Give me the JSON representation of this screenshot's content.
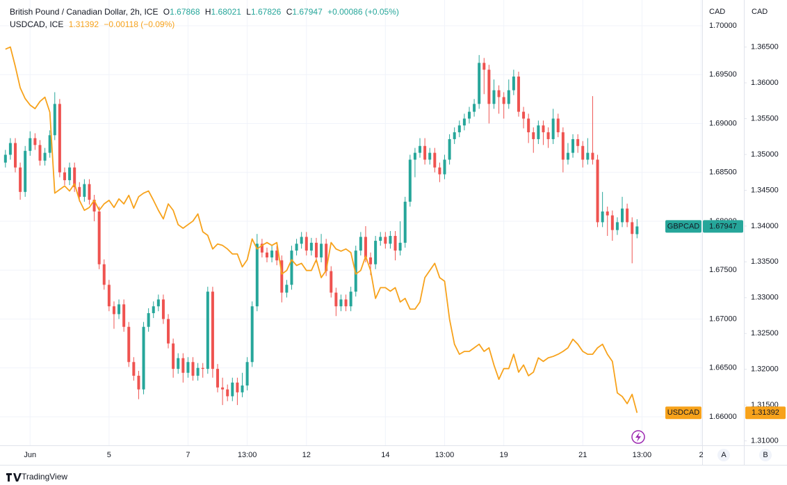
{
  "chart_data": {
    "type": "candlestick",
    "y_unit": "CAD",
    "y2_unit": "CAD",
    "brand": "TradingView",
    "scale_buttons": [
      "A",
      "B"
    ],
    "xlim": [
      -1.1,
      141.2
    ],
    "xticks": [
      {
        "value": 5,
        "label": "Jun"
      },
      {
        "value": 21,
        "label": "5"
      },
      {
        "value": 37,
        "label": "7"
      },
      {
        "value": 49,
        "label": "13:00"
      },
      {
        "value": 61,
        "label": "12"
      },
      {
        "value": 77,
        "label": "14"
      },
      {
        "value": 89,
        "label": "13:00"
      },
      {
        "value": 101,
        "label": "19"
      },
      {
        "value": 117,
        "label": "21"
      },
      {
        "value": 129,
        "label": "13:00"
      },
      {
        "value": 141,
        "label": "2"
      }
    ],
    "ylim": [
      1.65708,
      1.70263
    ],
    "yticks": [
      {
        "value": 1.66,
        "label": "1.66000"
      },
      {
        "value": 1.665,
        "label": "1.66500"
      },
      {
        "value": 1.67,
        "label": "1.67000"
      },
      {
        "value": 1.675,
        "label": "1.67500"
      },
      {
        "value": 1.68,
        "label": "1.68000"
      },
      {
        "value": 1.685,
        "label": "1.68500"
      },
      {
        "value": 1.69,
        "label": "1.69000"
      },
      {
        "value": 1.695,
        "label": "1.69500"
      },
      {
        "value": 1.7,
        "label": "1.70000"
      }
    ],
    "y2lim": [
      1.30938,
      1.37157
    ],
    "y2ticks": [
      {
        "value": 1.31,
        "label": "1.31000"
      },
      {
        "value": 1.315,
        "label": "1.31500"
      },
      {
        "value": 1.32,
        "label": "1.32000"
      },
      {
        "value": 1.325,
        "label": "1.32500"
      },
      {
        "value": 1.33,
        "label": "1.33000"
      },
      {
        "value": 1.335,
        "label": "1.33500"
      },
      {
        "value": 1.34,
        "label": "1.34000"
      },
      {
        "value": 1.345,
        "label": "1.34500"
      },
      {
        "value": 1.35,
        "label": "1.35000"
      },
      {
        "value": 1.355,
        "label": "1.35500"
      },
      {
        "value": 1.36,
        "label": "1.36000"
      },
      {
        "value": 1.365,
        "label": "1.36500"
      }
    ],
    "grid": true,
    "series": [
      {
        "name": "GBPCAD",
        "legend": "British Pound / Canadian Dollar, 2h, ICE",
        "type": "candlestick",
        "up_color": "#26a69a",
        "down_color": "#ef5350",
        "ohlc_labels": [
          "O",
          "H",
          "L",
          "C"
        ],
        "change": "+0.00086 (+0.05%)",
        "candles": [
          [
            1.686,
            1.6873,
            1.6855,
            1.6868
          ],
          [
            1.6868,
            1.6885,
            1.6863,
            1.688
          ],
          [
            1.688,
            1.6885,
            1.685,
            1.6855
          ],
          [
            1.6855,
            1.686,
            1.6822,
            1.683
          ],
          [
            1.683,
            1.6877,
            1.6825,
            1.6872
          ],
          [
            1.6872,
            1.6892,
            1.6867,
            1.6885
          ],
          [
            1.6885,
            1.689,
            1.6873,
            1.6878
          ],
          [
            1.6878,
            1.6883,
            1.6857,
            1.6862
          ],
          [
            1.6862,
            1.6875,
            1.6857,
            1.687
          ],
          [
            1.687,
            1.6893,
            1.6865,
            1.6888
          ],
          [
            1.6888,
            1.6932,
            1.6883,
            1.692
          ],
          [
            1.692,
            1.6925,
            1.6845,
            1.685
          ],
          [
            1.685,
            1.6855,
            1.6837,
            1.6842
          ],
          [
            1.6842,
            1.686,
            1.6837,
            1.6855
          ],
          [
            1.6855,
            1.686,
            1.683,
            1.6835
          ],
          [
            1.6835,
            1.684,
            1.682,
            1.6825
          ],
          [
            1.6825,
            1.6843,
            1.682,
            1.6838
          ],
          [
            1.6838,
            1.6843,
            1.6817,
            1.6822
          ],
          [
            1.6822,
            1.6827,
            1.68,
            1.681
          ],
          [
            1.681,
            1.6815,
            1.6751,
            1.6756
          ],
          [
            1.6756,
            1.6761,
            1.673,
            1.6735
          ],
          [
            1.6735,
            1.674,
            1.6708,
            1.6713
          ],
          [
            1.6713,
            1.6718,
            1.669,
            1.6705
          ],
          [
            1.6705,
            1.672,
            1.67,
            1.6715
          ],
          [
            1.6715,
            1.672,
            1.6687,
            1.6692
          ],
          [
            1.6692,
            1.6697,
            1.6651,
            1.6656
          ],
          [
            1.6656,
            1.6661,
            1.6637,
            1.6642
          ],
          [
            1.6642,
            1.6647,
            1.6618,
            1.6628
          ],
          [
            1.6628,
            1.6697,
            1.6623,
            1.6692
          ],
          [
            1.6692,
            1.6711,
            1.6687,
            1.6706
          ],
          [
            1.6706,
            1.6718,
            1.6701,
            1.6713
          ],
          [
            1.6713,
            1.6725,
            1.6708,
            1.672
          ],
          [
            1.672,
            1.6725,
            1.6695,
            1.67
          ],
          [
            1.67,
            1.6705,
            1.667,
            1.6675
          ],
          [
            1.6675,
            1.668,
            1.664,
            1.6649
          ],
          [
            1.6649,
            1.6665,
            1.6644,
            1.666
          ],
          [
            1.666,
            1.6665,
            1.6635,
            1.6645
          ],
          [
            1.6645,
            1.6661,
            1.664,
            1.6656
          ],
          [
            1.6656,
            1.6661,
            1.6637,
            1.6642
          ],
          [
            1.6642,
            1.6655,
            1.6637,
            1.665
          ],
          [
            1.665,
            1.6655,
            1.664,
            1.6649
          ],
          [
            1.6649,
            1.6733,
            1.6644,
            1.6728
          ],
          [
            1.6728,
            1.6733,
            1.664,
            1.6649
          ],
          [
            1.6649,
            1.6654,
            1.6625,
            1.663
          ],
          [
            1.663,
            1.664,
            1.6612,
            1.6628
          ],
          [
            1.6628,
            1.6633,
            1.6616,
            1.6621
          ],
          [
            1.6621,
            1.664,
            1.6616,
            1.6635
          ],
          [
            1.6635,
            1.664,
            1.6612,
            1.6625
          ],
          [
            1.6625,
            1.6645,
            1.662,
            1.6632
          ],
          [
            1.6632,
            1.6661,
            1.6627,
            1.6656
          ],
          [
            1.6656,
            1.6718,
            1.6651,
            1.6713
          ],
          [
            1.6713,
            1.6787,
            1.6708,
            1.6777
          ],
          [
            1.6777,
            1.6782,
            1.6763,
            1.6768
          ],
          [
            1.6768,
            1.6773,
            1.6758,
            1.6763
          ],
          [
            1.6763,
            1.6775,
            1.6758,
            1.677
          ],
          [
            1.677,
            1.6775,
            1.6755,
            1.676
          ],
          [
            1.676,
            1.6765,
            1.6717,
            1.6727
          ],
          [
            1.6727,
            1.674,
            1.6722,
            1.6735
          ],
          [
            1.6735,
            1.6775,
            1.673,
            1.677
          ],
          [
            1.677,
            1.6782,
            1.6765,
            1.6777
          ],
          [
            1.6777,
            1.6789,
            1.6772,
            1.6784
          ],
          [
            1.6784,
            1.6789,
            1.6765,
            1.677
          ],
          [
            1.677,
            1.6783,
            1.6765,
            1.6778
          ],
          [
            1.6778,
            1.6783,
            1.6758,
            1.6763
          ],
          [
            1.6763,
            1.6787,
            1.6758,
            1.6777
          ],
          [
            1.6777,
            1.6782,
            1.6744,
            1.6749
          ],
          [
            1.6749,
            1.6754,
            1.6722,
            1.6727
          ],
          [
            1.6727,
            1.6732,
            1.6703,
            1.6713
          ],
          [
            1.6713,
            1.6725,
            1.6708,
            1.672
          ],
          [
            1.672,
            1.6725,
            1.6708,
            1.6713
          ],
          [
            1.6713,
            1.6733,
            1.6708,
            1.6728
          ],
          [
            1.6728,
            1.6775,
            1.6723,
            1.677
          ],
          [
            1.677,
            1.6789,
            1.6765,
            1.6784
          ],
          [
            1.6784,
            1.6795,
            1.6758,
            1.6763
          ],
          [
            1.6763,
            1.6768,
            1.6745,
            1.6756
          ],
          [
            1.6756,
            1.6785,
            1.6751,
            1.678
          ],
          [
            1.678,
            1.6789,
            1.6775,
            1.6784
          ],
          [
            1.6784,
            1.6789,
            1.6772,
            1.6777
          ],
          [
            1.6777,
            1.679,
            1.6772,
            1.6785
          ],
          [
            1.6785,
            1.679,
            1.676,
            1.677
          ],
          [
            1.677,
            1.68,
            1.6765,
            1.6778
          ],
          [
            1.6778,
            1.6825,
            1.6773,
            1.682
          ],
          [
            1.682,
            1.6868,
            1.6815,
            1.6863
          ],
          [
            1.6863,
            1.6875,
            1.6845,
            1.687
          ],
          [
            1.687,
            1.6885,
            1.6865,
            1.6877
          ],
          [
            1.6877,
            1.6885,
            1.6858,
            1.6863
          ],
          [
            1.6863,
            1.6875,
            1.6858,
            1.687
          ],
          [
            1.687,
            1.6875,
            1.685,
            1.6855
          ],
          [
            1.6855,
            1.686,
            1.684,
            1.6848
          ],
          [
            1.6848,
            1.6868,
            1.6843,
            1.6863
          ],
          [
            1.6863,
            1.6889,
            1.6858,
            1.6884
          ],
          [
            1.6884,
            1.6896,
            1.6879,
            1.6891
          ],
          [
            1.6891,
            1.6903,
            1.6886,
            1.6898
          ],
          [
            1.6898,
            1.691,
            1.6893,
            1.6905
          ],
          [
            1.6905,
            1.6917,
            1.69,
            1.6912
          ],
          [
            1.6912,
            1.6925,
            1.6907,
            1.692
          ],
          [
            1.692,
            1.697,
            1.6915,
            1.6962
          ],
          [
            1.6962,
            1.6967,
            1.693,
            1.6955
          ],
          [
            1.6955,
            1.696,
            1.69,
            1.692
          ],
          [
            1.692,
            1.6945,
            1.6915,
            1.6934
          ],
          [
            1.6934,
            1.6939,
            1.691,
            1.6927
          ],
          [
            1.6927,
            1.6932,
            1.6905,
            1.692
          ],
          [
            1.692,
            1.6945,
            1.6915,
            1.6934
          ],
          [
            1.6934,
            1.6955,
            1.6929,
            1.6948
          ],
          [
            1.6948,
            1.6953,
            1.6907,
            1.6912
          ],
          [
            1.6912,
            1.6917,
            1.6895,
            1.6905
          ],
          [
            1.6905,
            1.691,
            1.688,
            1.6891
          ],
          [
            1.6891,
            1.6896,
            1.687,
            1.6884
          ],
          [
            1.6884,
            1.6903,
            1.6879,
            1.6898
          ],
          [
            1.6898,
            1.6903,
            1.6878,
            1.6891
          ],
          [
            1.6891,
            1.6896,
            1.6875,
            1.6884
          ],
          [
            1.6884,
            1.6915,
            1.6879,
            1.6905
          ],
          [
            1.6905,
            1.691,
            1.6886,
            1.6891
          ],
          [
            1.6891,
            1.6896,
            1.685,
            1.6863
          ],
          [
            1.6863,
            1.688,
            1.6858,
            1.687
          ],
          [
            1.687,
            1.6889,
            1.6865,
            1.6884
          ],
          [
            1.6884,
            1.6889,
            1.687,
            1.6877
          ],
          [
            1.6877,
            1.6882,
            1.6855,
            1.6863
          ],
          [
            1.6863,
            1.6885,
            1.6858,
            1.687
          ],
          [
            1.687,
            1.6928,
            1.6858,
            1.6863
          ],
          [
            1.6863,
            1.6868,
            1.6794,
            1.6799
          ],
          [
            1.6799,
            1.683,
            1.6794,
            1.681
          ],
          [
            1.681,
            1.6815,
            1.6785,
            1.6806
          ],
          [
            1.6806,
            1.6811,
            1.678,
            1.6791
          ],
          [
            1.6791,
            1.6804,
            1.6786,
            1.6799
          ],
          [
            1.6799,
            1.6825,
            1.6794,
            1.6813
          ],
          [
            1.6813,
            1.6818,
            1.6794,
            1.6799
          ],
          [
            1.6799,
            1.6804,
            1.6757,
            1.6787
          ],
          [
            1.67868,
            1.68021,
            1.67826,
            1.67947
          ]
        ]
      },
      {
        "name": "USDCAD",
        "legend": "USDCAD, ICE",
        "type": "line",
        "axis": "y2",
        "color": "#f7a21b",
        "change": "−0.00118 (−0.09%)",
        "values": [
          1.3647,
          1.365,
          1.3623,
          1.3593,
          1.3578,
          1.3569,
          1.3564,
          1.3574,
          1.358,
          1.3559,
          1.3446,
          1.3451,
          1.3456,
          1.3449,
          1.3459,
          1.3436,
          1.3422,
          1.3426,
          1.3436,
          1.3422,
          1.3431,
          1.3436,
          1.3426,
          1.3438,
          1.3431,
          1.3443,
          1.3425,
          1.3441,
          1.3446,
          1.3449,
          1.3436,
          1.3422,
          1.341,
          1.3431,
          1.3422,
          1.3402,
          1.3397,
          1.3402,
          1.3407,
          1.3417,
          1.3392,
          1.3387,
          1.3368,
          1.3375,
          1.3373,
          1.3368,
          1.3361,
          1.3361,
          1.3343,
          1.3353,
          1.3382,
          1.3368,
          1.3373,
          1.3377,
          1.3373,
          1.3377,
          1.3333,
          1.3338,
          1.3353,
          1.3345,
          1.3348,
          1.3338,
          1.3338,
          1.3353,
          1.3328,
          1.3338,
          1.3377,
          1.3368,
          1.3365,
          1.3368,
          1.3363,
          1.3333,
          1.3338,
          1.3358,
          1.3338,
          1.3299,
          1.3314,
          1.3314,
          1.3309,
          1.3314,
          1.3294,
          1.3299,
          1.3284,
          1.3284,
          1.3294,
          1.3328,
          1.3338,
          1.3348,
          1.3328,
          1.3323,
          1.327,
          1.3235,
          1.3221,
          1.3225,
          1.3225,
          1.323,
          1.3235,
          1.3225,
          1.323,
          1.3206,
          1.3186,
          1.3201,
          1.3201,
          1.3221,
          1.3196,
          1.3206,
          1.3191,
          1.3196,
          1.3216,
          1.3211,
          1.3216,
          1.3218,
          1.3221,
          1.3225,
          1.323,
          1.3242,
          1.3235,
          1.3225,
          1.3221,
          1.3221,
          1.323,
          1.3235,
          1.3221,
          1.3211,
          1.3167,
          1.3162,
          1.3152,
          1.3165,
          1.31392
        ]
      }
    ]
  }
}
